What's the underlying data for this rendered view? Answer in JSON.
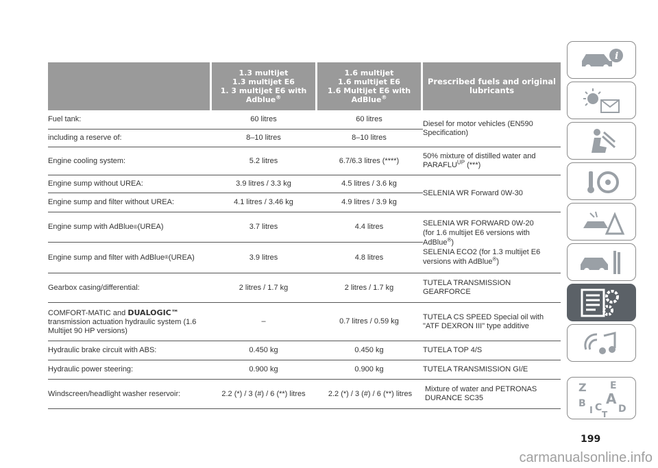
{
  "header": {
    "col2": [
      "1.3 multijet",
      "1.3 multijet E6",
      "1. 3 multijet E6 with",
      "Adblue"
    ],
    "col2_sup": "®",
    "col3": [
      "1.6 multijet",
      "1.6 multijet E6",
      "1.6 Multijet E6 with",
      "AdBlue"
    ],
    "col3_sup": "®",
    "col4": [
      "Prescribed fuels and original",
      "lubricants"
    ]
  },
  "rows": {
    "fuel_tank": {
      "label": "Fuel tank:",
      "v13": "60 litres",
      "v16": "60 litres"
    },
    "reserve": {
      "label": "including a reserve of:",
      "v13": "8–10 litres",
      "v16": "8–10 litres"
    },
    "fuel_spec": [
      "Diesel for motor vehicles (EN590",
      "Specification)"
    ],
    "cooling": {
      "label": "Engine cooling system:",
      "v13": "5.2 litres",
      "v16": "6.7/6.3 litres (****)",
      "spec1": "50% mixture of distilled water and",
      "spec2a": "PARAFLU",
      "spec2sup": "UP",
      "spec2b": " (***)"
    },
    "sump_no_urea": {
      "label": "Engine sump without UREA:",
      "v13": "3.9 litres / 3.3 kg",
      "v16": "4.5 litres / 3.6 kg"
    },
    "sump_filter_no_urea": {
      "label": "Engine sump and filter without UREA:",
      "v13": "4.1 litres / 3.46 kg",
      "v16": "4.9 litres / 3.9 kg"
    },
    "sump_oil_spec": "SELENIA WR Forward 0W-30",
    "sump_urea": {
      "label_a": "Engine sump with AdBlue",
      "label_sup": "®",
      "label_b": " (UREA)",
      "v13": "3.7 litres",
      "v16": "4.4 litres"
    },
    "sump_filter_urea": {
      "label_a": "Engine sump and filter with AdBlue",
      "label_sup": "®",
      "label_b": " (UREA)",
      "v13": "3.9 litres",
      "v16": "4.8 litres"
    },
    "urea_spec": {
      "l1": "SELENIA WR FORWARD 0W-20",
      "l2": "(for 1.6 multijet E6 versions with",
      "l3a": "AdBlue",
      "l3sup": "®",
      "l3b": ")",
      "l4": "SELENIA ECO2 (for 1.3 multijet E6",
      "l5a": "versions with AdBlue",
      "l5sup": "®",
      "l5b": ")"
    },
    "gearbox": {
      "label": "Gearbox casing/differential:",
      "v13": "2 litres / 1.7 kg",
      "v16": "2 litres / 1.7 kg",
      "spec1": "TUTELA TRANSMISSION",
      "spec2": "GEARFORCE"
    },
    "comfort": {
      "label_a": "COMFORT-MATIC and ",
      "label_bold": "DUALOGIC™",
      "label_l2": "transmission actuation hydraulic system (1.6",
      "label_l3": "Multijet 90 HP versions)",
      "v13": "–",
      "v16": "0.7 litres / 0.59 kg",
      "spec1": "TUTELA CS SPEED Special oil with",
      "spec2": "\"ATF DEXRON III\" type additive"
    },
    "brake": {
      "label": "Hydraulic brake circuit with ABS:",
      "v13": "0.450 kg",
      "v16": "0.450 kg",
      "spec": "TUTELA TOP 4/S"
    },
    "steering": {
      "label": "Hydraulic power steering:",
      "v13": "0.900 kg",
      "v16": "0.900 kg",
      "spec": "TUTELA TRANSMISSION GI/E"
    },
    "washer": {
      "label": "Windscreen/headlight washer reservoir:",
      "v13": "2.2 (*) / 3 (#) / 6 (**) litres",
      "v16": "2.2 (*) / 3 (#) / 6 (**) litres",
      "spec1": "Mixture of water and PETRONAS",
      "spec2": "DURANCE SC35"
    }
  },
  "sidebar": {
    "tabs": [
      "car-info-icon",
      "warning-lights-icon",
      "safety-airbag-icon",
      "steering-wheel-key-icon",
      "emergency-icon",
      "car-maintenance-icon",
      "technical-data-icon",
      "multimedia-icon",
      "index-icon"
    ],
    "active_index": 6,
    "index_letters": [
      "Z",
      "E",
      "B",
      "A",
      "I",
      "C",
      "D",
      "T"
    ]
  },
  "page_number": "199",
  "watermark": "carmanualsonline.info",
  "colors": {
    "header_bg": "#9a9a9a",
    "active_tab": "#5b6167",
    "rule": "#555555"
  }
}
